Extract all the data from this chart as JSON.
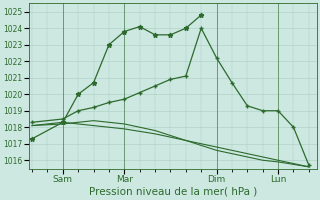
{
  "background_color": "#cce8e0",
  "plot_bg_color": "#cce8e0",
  "grid_color": "#aaccc4",
  "line_color": "#2d6a2d",
  "ylim": [
    1015.5,
    1025.5
  ],
  "yticks": [
    1016,
    1017,
    1018,
    1019,
    1020,
    1021,
    1022,
    1023,
    1024,
    1025
  ],
  "xlabel": "Pression niveau de la mer( hPa )",
  "xlabel_fontsize": 7.5,
  "xtick_labels": [
    "Sam",
    "Mar",
    "Dim",
    "Lun"
  ],
  "xtick_positions": [
    2,
    6,
    12,
    16
  ],
  "vline_positions": [
    2,
    6,
    12,
    16
  ],
  "xlim": [
    -0.2,
    18.5
  ],
  "line1_x": [
    0,
    2,
    3,
    4,
    5,
    6,
    7,
    8,
    9,
    10,
    11
  ],
  "line1_y": [
    1017.3,
    1018.3,
    1020.0,
    1020.7,
    1023.0,
    1023.8,
    1024.1,
    1023.6,
    1023.6,
    1024.0,
    1024.8
  ],
  "line2_x": [
    0,
    2,
    3,
    4,
    5,
    6,
    7,
    8,
    9,
    10,
    11,
    12,
    13,
    14,
    15,
    16,
    17,
    18
  ],
  "line2_y": [
    1018.3,
    1018.5,
    1019.0,
    1019.2,
    1019.5,
    1019.7,
    1020.1,
    1020.5,
    1020.9,
    1021.1,
    1024.0,
    1022.2,
    1020.7,
    1019.3,
    1019.0,
    1019.0,
    1018.0,
    1015.7
  ],
  "line3_x": [
    0,
    2,
    4,
    6,
    8,
    10,
    12,
    14,
    16,
    18
  ],
  "line3_y": [
    1018.1,
    1018.3,
    1018.1,
    1017.9,
    1017.6,
    1017.2,
    1016.8,
    1016.4,
    1016.0,
    1015.6
  ],
  "line4_x": [
    0,
    2,
    3,
    4,
    5,
    6,
    7,
    8,
    9,
    10,
    11,
    12,
    13,
    14,
    15,
    16,
    17,
    18
  ],
  "line4_y": [
    1018.1,
    1018.2,
    1018.3,
    1018.4,
    1018.3,
    1018.2,
    1018.0,
    1017.8,
    1017.5,
    1017.2,
    1016.9,
    1016.6,
    1016.4,
    1016.2,
    1016.0,
    1015.9,
    1015.75,
    1015.6
  ]
}
